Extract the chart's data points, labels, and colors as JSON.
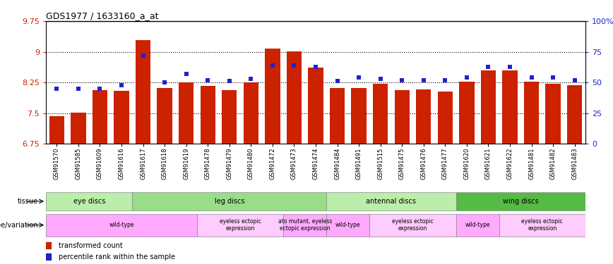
{
  "title": "GDS1977 / 1633160_a_at",
  "samples": [
    "GSM91570",
    "GSM91585",
    "GSM91609",
    "GSM91616",
    "GSM91617",
    "GSM91618",
    "GSM91619",
    "GSM91478",
    "GSM91479",
    "GSM91480",
    "GSM91472",
    "GSM91473",
    "GSM91474",
    "GSM91484",
    "GSM91491",
    "GSM91515",
    "GSM91475",
    "GSM91476",
    "GSM91477",
    "GSM91620",
    "GSM91621",
    "GSM91622",
    "GSM91481",
    "GSM91482",
    "GSM91483"
  ],
  "bar_values": [
    7.42,
    7.51,
    8.07,
    8.05,
    9.28,
    8.12,
    8.26,
    8.16,
    8.07,
    8.26,
    9.08,
    9.01,
    8.62,
    8.12,
    8.12,
    8.22,
    8.06,
    8.08,
    8.03,
    8.27,
    8.54,
    8.54,
    8.27,
    8.22,
    8.18
  ],
  "dot_values_pct": [
    45,
    45,
    45,
    48,
    72,
    50,
    57,
    52,
    51,
    53,
    64,
    64,
    63,
    51,
    54,
    53,
    52,
    52,
    52,
    54,
    63,
    63,
    54,
    54,
    52
  ],
  "ylim": [
    6.75,
    9.75
  ],
  "yticks": [
    6.75,
    7.5,
    8.25,
    9.0,
    9.75
  ],
  "ytick_labels": [
    "6.75",
    "7.5",
    "8.25",
    "9",
    "9.75"
  ],
  "right_yticks": [
    0,
    25,
    50,
    75,
    100
  ],
  "right_ytick_labels": [
    "0",
    "25",
    "50",
    "75",
    "100%"
  ],
  "right_ylim": [
    0,
    100
  ],
  "bar_color": "#cc2200",
  "dot_color": "#2222cc",
  "tissue_groups": [
    {
      "label": "eye discs",
      "start": 0,
      "end": 4,
      "color": "#bbeeaa"
    },
    {
      "label": "leg discs",
      "start": 4,
      "end": 13,
      "color": "#99dd88"
    },
    {
      "label": "antennal discs",
      "start": 13,
      "end": 19,
      "color": "#bbeeaa"
    },
    {
      "label": "wing discs",
      "start": 19,
      "end": 25,
      "color": "#55bb44"
    }
  ],
  "genotype_groups": [
    {
      "label": "wild-type",
      "start": 0,
      "end": 7,
      "color": "#ffaaff"
    },
    {
      "label": "eyeless ectopic\nexpression",
      "start": 7,
      "end": 11,
      "color": "#ffccff"
    },
    {
      "label": "ato mutant, eyeless\nectopic expression",
      "start": 11,
      "end": 13,
      "color": "#ffaaff"
    },
    {
      "label": "wild-type",
      "start": 13,
      "end": 15,
      "color": "#ffaaff"
    },
    {
      "label": "eyeless ectopic\nexpression",
      "start": 15,
      "end": 19,
      "color": "#ffccff"
    },
    {
      "label": "wild-type",
      "start": 19,
      "end": 21,
      "color": "#ffaaff"
    },
    {
      "label": "eyeless ectopic\nexpression",
      "start": 21,
      "end": 25,
      "color": "#ffccff"
    }
  ],
  "legend_items": [
    {
      "label": "transformed count",
      "color": "#cc2200"
    },
    {
      "label": "percentile rank within the sample",
      "color": "#2222cc"
    }
  ],
  "bg_color": "#ffffff"
}
